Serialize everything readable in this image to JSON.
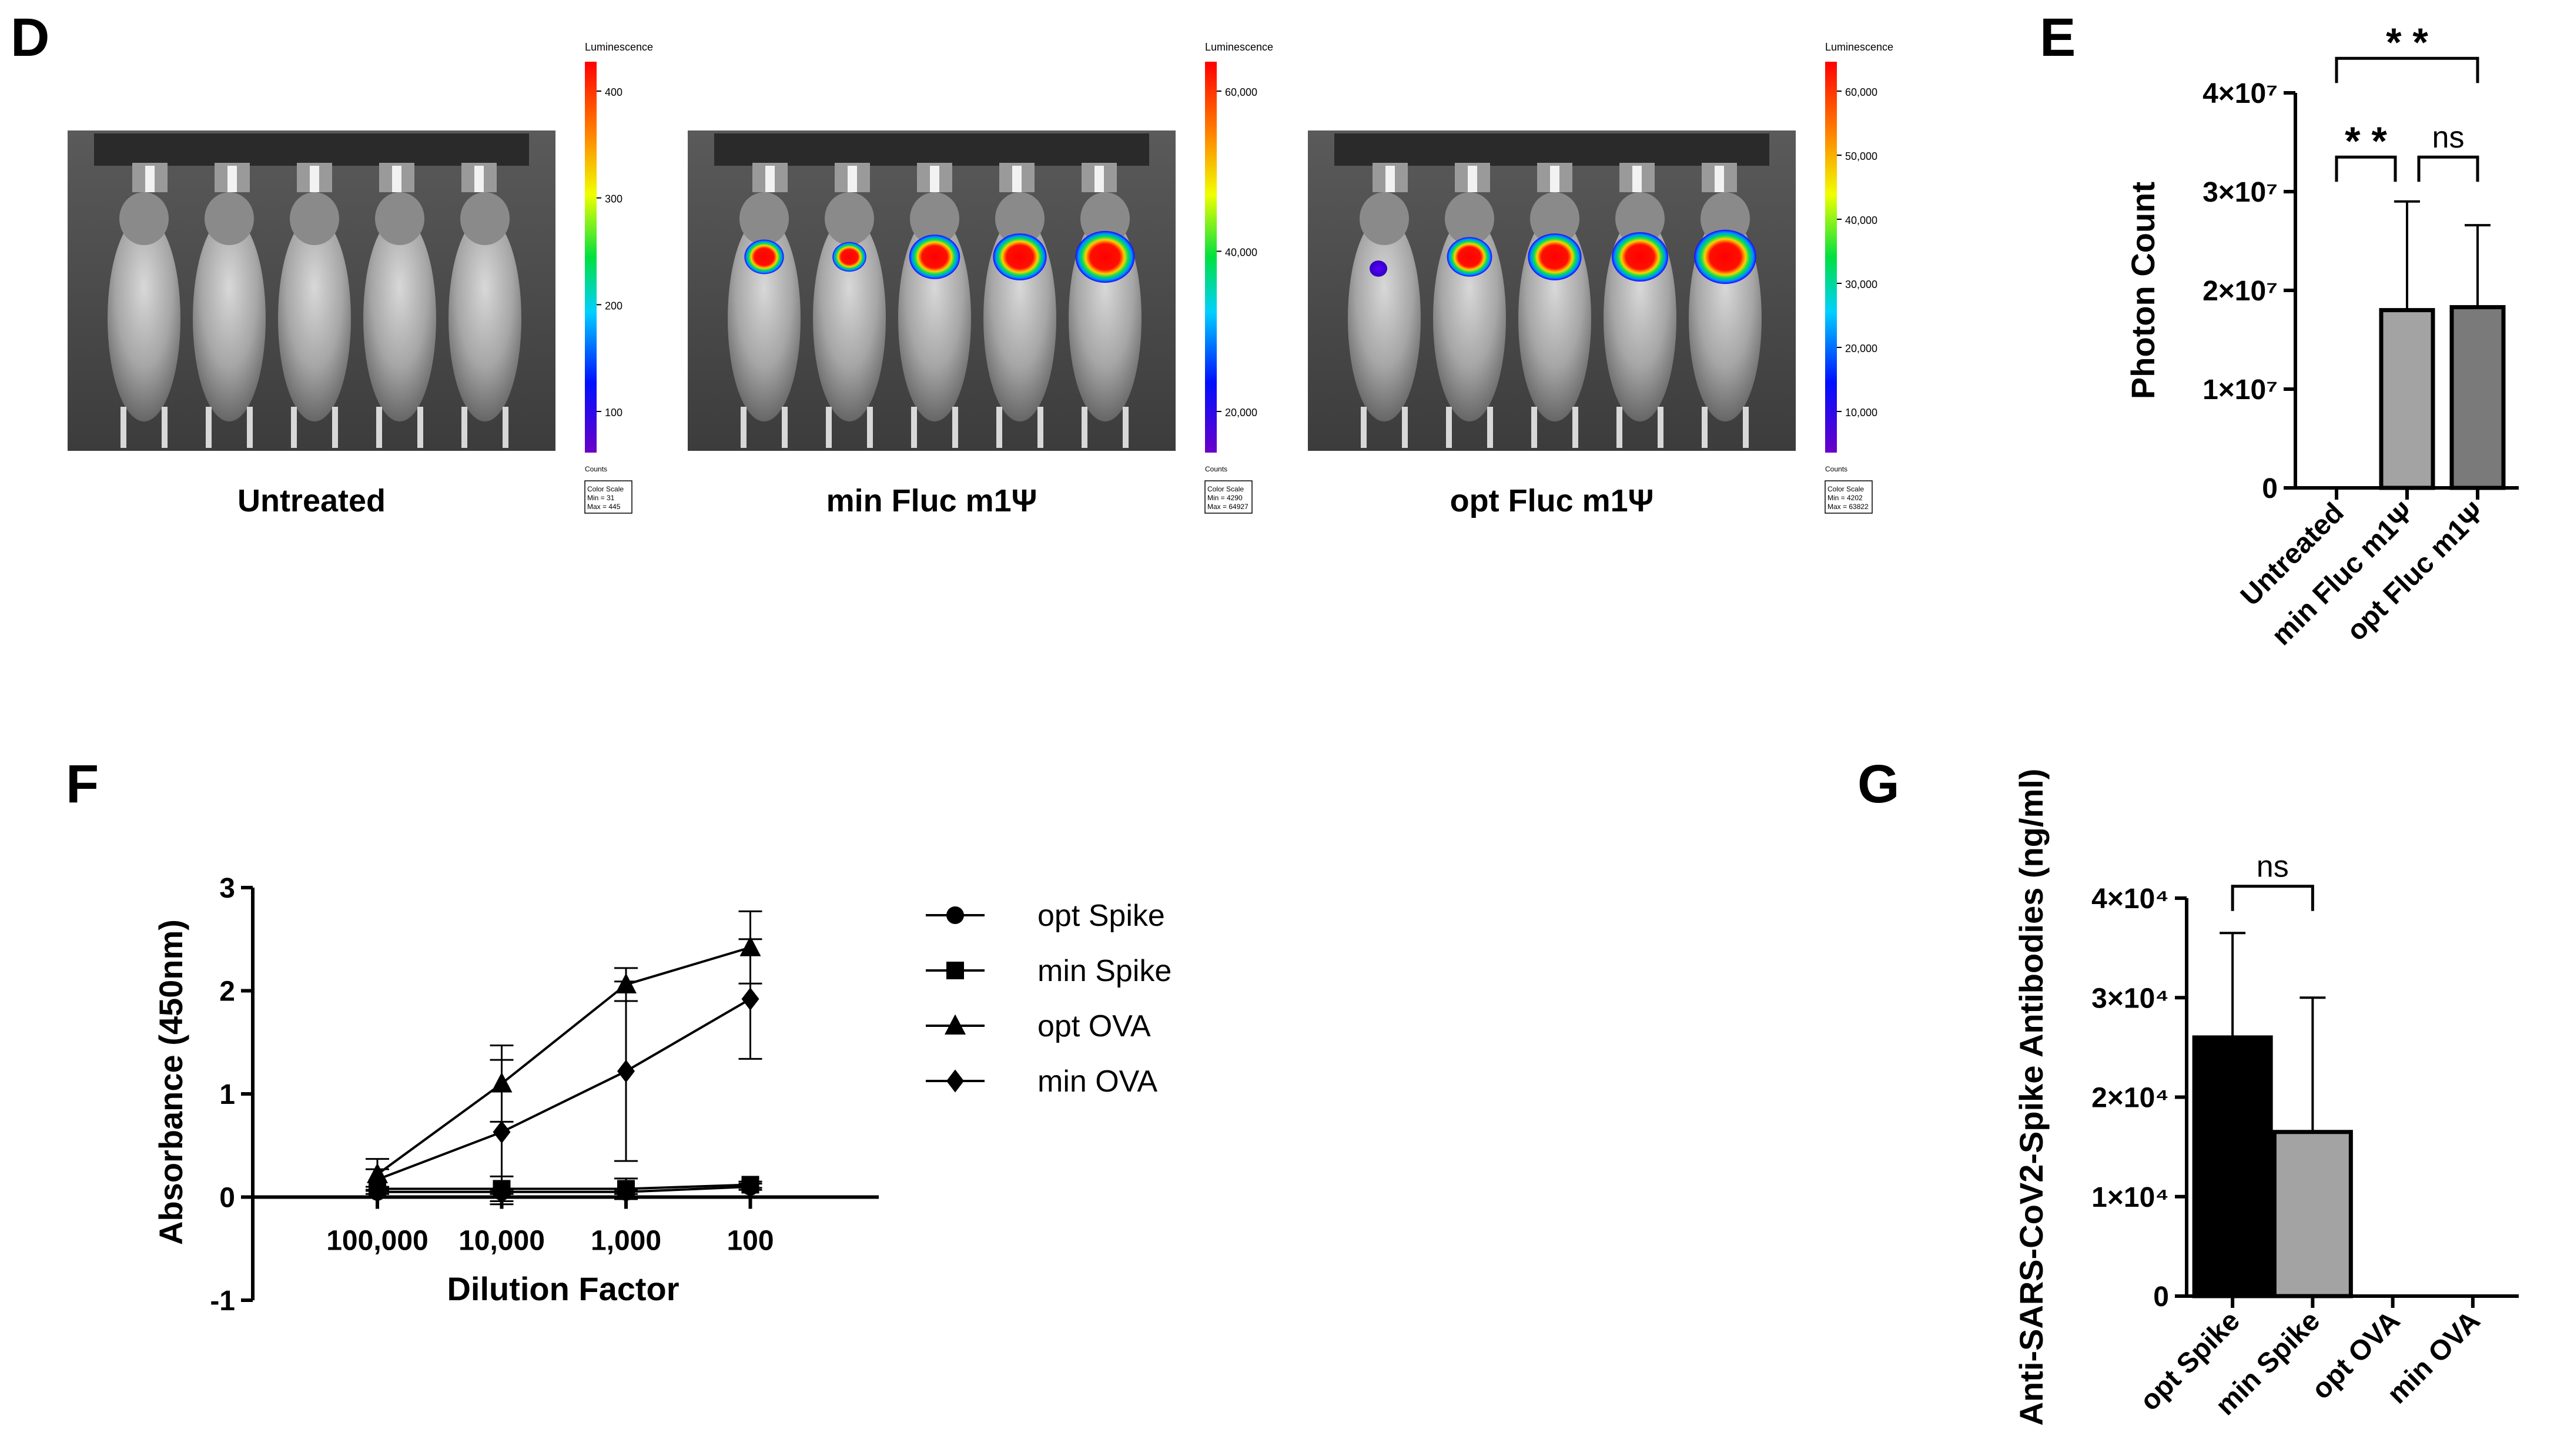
{
  "panels": {
    "D": {
      "letter": "D",
      "images": [
        {
          "label": "Untreated",
          "scale_title": "Luminescence",
          "scale_ticks": [
            "400",
            "300",
            "200",
            "100"
          ],
          "counts_label": "Counts",
          "box_title": "Color Scale",
          "box_min": "Min = 31",
          "box_max": "Max = 445",
          "signal": [
            0,
            0,
            0,
            0,
            0
          ]
        },
        {
          "label": "min Fluc m1Ψ",
          "scale_title": "Luminescence",
          "scale_ticks": [
            "60,000",
            "40,000",
            "20,000"
          ],
          "counts_label": "Counts",
          "box_title": "Color Scale",
          "box_min": "Min = 4290",
          "box_max": "Max = 64927",
          "signal": [
            0.7,
            0.6,
            0.9,
            0.95,
            1.05
          ]
        },
        {
          "label": "opt Fluc m1Ψ",
          "scale_title": "Luminescence",
          "scale_ticks": [
            "60,000",
            "50,000",
            "40,000",
            "30,000",
            "20,000",
            "10,000"
          ],
          "counts_label": "Counts",
          "box_title": "Color Scale",
          "box_min": "Min = 4202",
          "box_max": "Max = 63822",
          "signal": [
            0.25,
            0.8,
            0.95,
            1.0,
            1.1
          ]
        }
      ]
    },
    "E": {
      "letter": "E"
    },
    "F": {
      "letter": "F"
    },
    "G": {
      "letter": "G"
    }
  },
  "colors": {
    "bar_min": "#a3a3a3",
    "bar_opt": "#7a7a7a",
    "bar_black": "#000000"
  },
  "chart_data": [
    {
      "id": "E",
      "type": "bar",
      "categories": [
        "Untreated",
        "min Fluc m1Ψ",
        "opt Fluc m1Ψ"
      ],
      "values": [
        0,
        18000000,
        18300000
      ],
      "errors": [
        0,
        11000000,
        8300000
      ],
      "ylabel": "Photon Count",
      "ylim": [
        0,
        40000000
      ],
      "yticks": [
        {
          "value": 0,
          "label": "0"
        },
        {
          "value": 10000000,
          "label": "1×10⁷"
        },
        {
          "value": 20000000,
          "label": "2×10⁷"
        },
        {
          "value": 30000000,
          "label": "3×10⁷"
        },
        {
          "value": 40000000,
          "label": "4×10⁷"
        }
      ],
      "significance": [
        {
          "from": 0,
          "to": 2,
          "label": "**",
          "level": 43500000
        },
        {
          "from": 0,
          "to": 1,
          "label": "**",
          "level": 33500000
        },
        {
          "from": 1,
          "to": 2,
          "label": "ns",
          "level": 33500000
        }
      ]
    },
    {
      "id": "F",
      "type": "line",
      "x": [
        100000,
        10000,
        1000,
        100
      ],
      "xticklabels": [
        "100,000",
        "10,000",
        "1,000",
        "100"
      ],
      "xlabel": "Dilution Factor",
      "ylabel": "Absorbance (450nm)",
      "ylim": [
        -1,
        3
      ],
      "yticks": [
        {
          "value": -1,
          "label": "-1"
        },
        {
          "value": 0,
          "label": "0"
        },
        {
          "value": 1,
          "label": "1"
        },
        {
          "value": 2,
          "label": "2"
        },
        {
          "value": 3,
          "label": "3"
        }
      ],
      "series": [
        {
          "name": "opt Spike",
          "marker": "circle",
          "values": [
            0.05,
            0.05,
            0.05,
            0.1
          ],
          "errors": [
            0.02,
            0.02,
            0.02,
            0.03
          ]
        },
        {
          "name": "min Spike",
          "marker": "square",
          "values": [
            0.08,
            0.08,
            0.08,
            0.12
          ],
          "errors": [
            0.02,
            0.12,
            0.1,
            0.03
          ]
        },
        {
          "name": "opt OVA",
          "marker": "triangle",
          "values": [
            0.22,
            1.1,
            2.06,
            2.42
          ],
          "errors": [
            0.15,
            0.37,
            0.16,
            0.35
          ]
        },
        {
          "name": "min OVA",
          "marker": "diamond",
          "values": [
            0.17,
            0.63,
            1.22,
            1.92
          ],
          "errors": [
            0.1,
            0.7,
            0.87,
            0.58
          ]
        }
      ]
    },
    {
      "id": "G",
      "type": "bar",
      "categories": [
        "opt Spike",
        "min Spike",
        "opt OVA",
        "min OVA"
      ],
      "values": [
        26000,
        16500,
        0,
        0
      ],
      "errors": [
        10500,
        13500,
        0,
        0
      ],
      "ylabel": "Anti-SARS-CoV2-Spike Antibodies (ng/ml)",
      "ylim": [
        0,
        40000
      ],
      "yticks": [
        {
          "value": 0,
          "label": "0"
        },
        {
          "value": 10000,
          "label": "1×10⁴"
        },
        {
          "value": 20000,
          "label": "2×10⁴"
        },
        {
          "value": 30000,
          "label": "3×10⁴"
        },
        {
          "value": 40000,
          "label": "4×10⁴"
        }
      ],
      "significance": [
        {
          "from": 0,
          "to": 1,
          "label": "ns",
          "level": 41200
        }
      ]
    }
  ]
}
